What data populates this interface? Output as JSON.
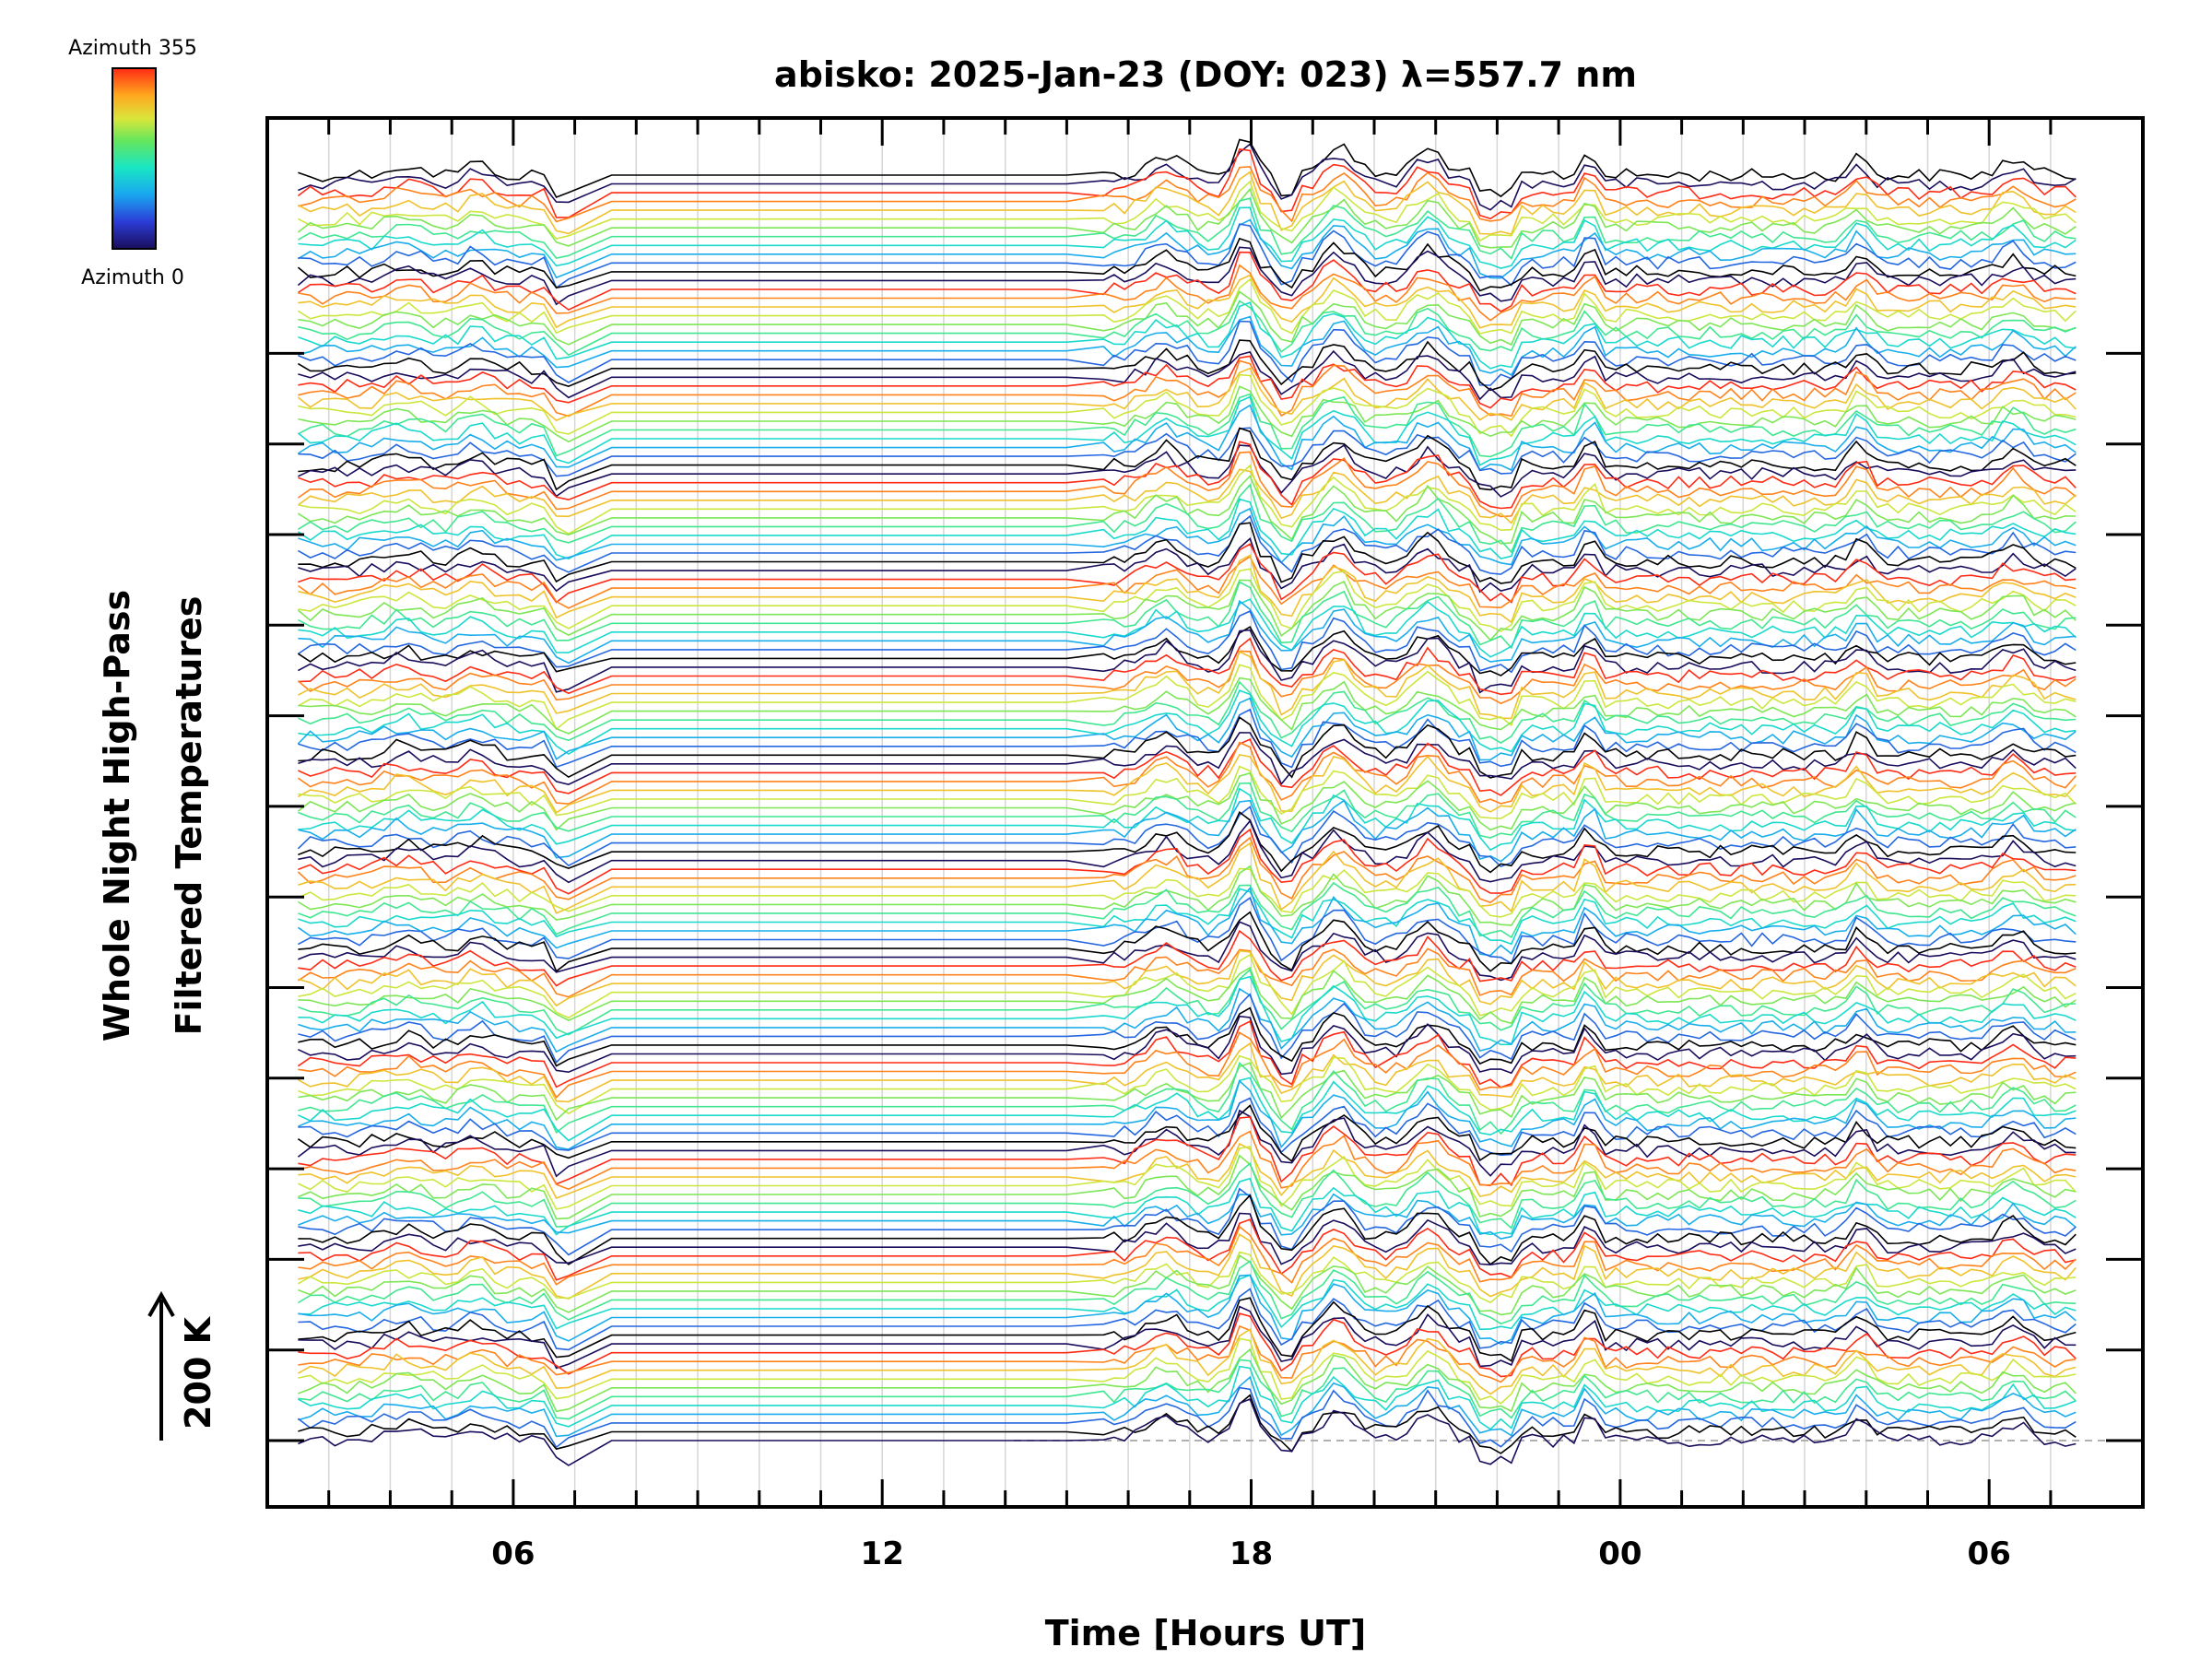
{
  "chart_data": {
    "type": "line",
    "title": "abisko: 2025-Jan-23 (DOY: 023) λ=557.7 nm",
    "xlabel": "Time [Hours UT]",
    "ylabel_line1": "Whole Night High-Pass",
    "ylabel_line2": "Filtered Temperatures",
    "scale_bar_label": "200 K",
    "x_tick_labels": [
      "06",
      "12",
      "18",
      "00",
      "06"
    ],
    "x_tick_hours": [
      6,
      12,
      18,
      24,
      30
    ],
    "xlim_hours": [
      2,
      32.5
    ],
    "data_range_hours": [
      2.5,
      31.5
    ],
    "grid": true,
    "colorbar": {
      "label_top": "Azimuth 355",
      "label_bottom": "Azimuth 0",
      "azimuth_range": [
        0,
        355
      ]
    },
    "colors": {
      "azimuth_0": "#1a0d5c",
      "azimuth_90": "#19c9e6",
      "azimuth_180": "#a6e64c",
      "azimuth_355": "#ff3b14",
      "grid": "#d6d6d6",
      "axis": "#000000"
    },
    "series_count": 145,
    "rows": 13
  }
}
